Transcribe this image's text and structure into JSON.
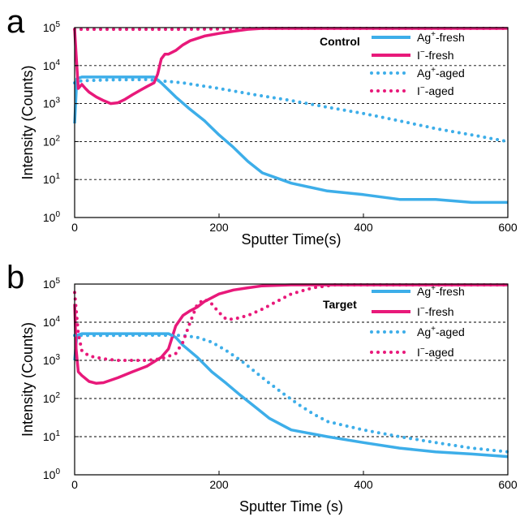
{
  "chart_data": [
    {
      "type": "line",
      "panel_letter": "a",
      "title": "Control",
      "xlabel": "Sputter Time(s)",
      "ylabel": "Intensity (Counts)",
      "xlim": [
        0,
        600
      ],
      "ylim": [
        1,
        100000
      ],
      "yscale": "log",
      "x_ticks": [
        "0",
        "200",
        "400",
        "600"
      ],
      "y_ticks": [
        {
          "base": "10",
          "exp": "0"
        },
        {
          "base": "10",
          "exp": "1"
        },
        {
          "base": "10",
          "exp": "2"
        },
        {
          "base": "10",
          "exp": "3"
        },
        {
          "base": "10",
          "exp": "4"
        },
        {
          "base": "10",
          "exp": "5"
        }
      ],
      "grid": "horizontal dashed",
      "legend_position": "top-right",
      "series": [
        {
          "name_main": "Ag",
          "name_sup": "+",
          "name_suffix": "-fresh",
          "color": "#3daee9",
          "style": "solid",
          "x": [
            0,
            3,
            10,
            30,
            60,
            90,
            110,
            120,
            140,
            160,
            180,
            200,
            220,
            240,
            260,
            300,
            350,
            400,
            450,
            500,
            550,
            600
          ],
          "y": [
            300,
            4500,
            5000,
            5000,
            5000,
            5000,
            5000,
            3500,
            1500,
            700,
            350,
            150,
            70,
            30,
            15,
            8,
            5,
            4,
            3,
            3,
            2.5,
            2.5
          ]
        },
        {
          "name_main": "I",
          "name_sup": "−",
          "name_suffix": "-fresh",
          "color": "#e8197a",
          "style": "solid",
          "x": [
            0,
            2,
            5,
            10,
            15,
            20,
            30,
            40,
            50,
            60,
            70,
            80,
            90,
            100,
            110,
            115,
            120,
            125,
            130,
            140,
            150,
            160,
            180,
            200,
            220,
            240,
            260,
            300,
            400,
            500,
            600
          ],
          "y": [
            90000,
            20000,
            2500,
            3200,
            2500,
            2000,
            1500,
            1200,
            1000,
            1050,
            1300,
            1700,
            2200,
            2800,
            3500,
            6000,
            15000,
            20000,
            20000,
            25000,
            35000,
            45000,
            60000,
            70000,
            80000,
            90000,
            95000,
            95000,
            95000,
            95000,
            95000
          ]
        },
        {
          "name_main": "Ag",
          "name_sup": "+",
          "name_suffix": "-aged",
          "color": "#3daee9",
          "style": "dotted",
          "x": [
            0,
            10,
            50,
            100,
            150,
            200,
            250,
            300,
            350,
            400,
            450,
            500,
            550,
            600
          ],
          "y": [
            3500,
            4000,
            4200,
            4300,
            3500,
            2500,
            1700,
            1200,
            800,
            550,
            350,
            220,
            150,
            100
          ]
        },
        {
          "name_main": "I",
          "name_sup": "−",
          "name_suffix": "-aged",
          "color": "#e8197a",
          "style": "dotted",
          "x": [
            0,
            50,
            100,
            150,
            200,
            250,
            300,
            400,
            500,
            600
          ],
          "y": [
            90000,
            90000,
            90000,
            90000,
            92000,
            95000,
            95000,
            95000,
            95000,
            95000
          ]
        }
      ]
    },
    {
      "type": "line",
      "panel_letter": "b",
      "title": "Target",
      "xlabel": "Sputter Time (s)",
      "ylabel": "Intensity (Counts)",
      "xlim": [
        0,
        600
      ],
      "ylim": [
        1,
        100000
      ],
      "yscale": "log",
      "x_ticks": [
        "0",
        "200",
        "400",
        "600"
      ],
      "y_ticks": [
        {
          "base": "10",
          "exp": "0"
        },
        {
          "base": "10",
          "exp": "1"
        },
        {
          "base": "10",
          "exp": "2"
        },
        {
          "base": "10",
          "exp": "3"
        },
        {
          "base": "10",
          "exp": "4"
        },
        {
          "base": "10",
          "exp": "5"
        }
      ],
      "grid": "horizontal dashed",
      "legend_position": "top-right",
      "series": [
        {
          "name_main": "Ag",
          "name_sup": "+",
          "name_suffix": "-fresh",
          "color": "#3daee9",
          "style": "solid",
          "x": [
            0,
            3,
            10,
            50,
            100,
            130,
            140,
            150,
            170,
            190,
            210,
            230,
            250,
            270,
            300,
            350,
            400,
            450,
            500,
            550,
            600
          ],
          "y": [
            1000,
            4500,
            5000,
            5000,
            5000,
            5000,
            4000,
            2500,
            1200,
            500,
            250,
            120,
            60,
            30,
            15,
            10,
            7,
            5,
            4,
            3.5,
            3
          ]
        },
        {
          "name_main": "I",
          "name_sup": "−",
          "name_suffix": "-fresh",
          "color": "#e8197a",
          "style": "solid",
          "x": [
            0,
            2,
            5,
            10,
            20,
            30,
            40,
            60,
            80,
            100,
            120,
            130,
            135,
            140,
            150,
            160,
            170,
            180,
            200,
            220,
            240,
            260,
            300,
            400,
            500,
            600
          ],
          "y": [
            30000,
            2000,
            500,
            400,
            280,
            250,
            260,
            350,
            500,
            700,
            1200,
            2000,
            4000,
            8000,
            15000,
            20000,
            25000,
            35000,
            55000,
            70000,
            80000,
            90000,
            95000,
            95000,
            95000,
            95000
          ]
        },
        {
          "name_main": "Ag",
          "name_sup": "+",
          "name_suffix": "-aged",
          "color": "#3daee9",
          "style": "dotted",
          "x": [
            0,
            10,
            50,
            100,
            150,
            170,
            190,
            210,
            230,
            250,
            270,
            290,
            310,
            330,
            350,
            400,
            450,
            500,
            550,
            600
          ],
          "y": [
            4500,
            4500,
            4500,
            4600,
            4500,
            4000,
            3000,
            1800,
            1000,
            500,
            250,
            130,
            70,
            40,
            25,
            15,
            10,
            7,
            5,
            4
          ]
        },
        {
          "name_main": "I",
          "name_sup": "−",
          "name_suffix": "-aged",
          "color": "#e8197a",
          "style": "dotted",
          "x": [
            0,
            5,
            10,
            20,
            40,
            60,
            80,
            100,
            120,
            140,
            150,
            160,
            170,
            180,
            190,
            200,
            210,
            220,
            240,
            260,
            280,
            300,
            330,
            360,
            400,
            500,
            600
          ],
          "y": [
            60000,
            5000,
            1800,
            1300,
            1100,
            1000,
            1000,
            1000,
            1100,
            1500,
            3000,
            10000,
            30000,
            40000,
            30000,
            18000,
            12000,
            12000,
            15000,
            22000,
            35000,
            55000,
            80000,
            95000,
            95000,
            95000,
            95000
          ]
        }
      ]
    }
  ]
}
